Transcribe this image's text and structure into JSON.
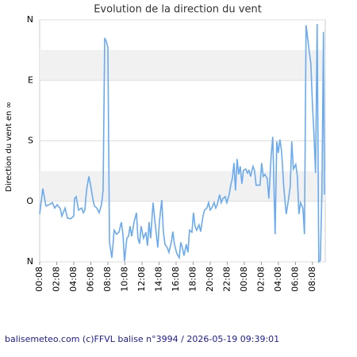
{
  "chart_data": {
    "type": "line",
    "title": "Evolution de la direction du vent",
    "ylabel": "Direction du vent en ∞",
    "footer": "balisemeteo.com (c)FFVL balise n°3994 / 2026-05-19 09:39:01",
    "xlim": [
      0,
      33.5
    ],
    "xticks": [
      {
        "value": 0,
        "label": "00:08"
      },
      {
        "value": 2,
        "label": "02:08"
      },
      {
        "value": 4,
        "label": "04:08"
      },
      {
        "value": 6,
        "label": "06:08"
      },
      {
        "value": 8,
        "label": "08:08"
      },
      {
        "value": 10,
        "label": "10:08"
      },
      {
        "value": 12,
        "label": "12:08"
      },
      {
        "value": 14,
        "label": "14:08"
      },
      {
        "value": 16,
        "label": "16:08"
      },
      {
        "value": 18,
        "label": "18:08"
      },
      {
        "value": 20,
        "label": "20:08"
      },
      {
        "value": 22,
        "label": "22:08"
      },
      {
        "value": 24,
        "label": "00:08"
      },
      {
        "value": 26,
        "label": "02:08"
      },
      {
        "value": 28,
        "label": "04:08"
      },
      {
        "value": 30,
        "label": "06:08"
      },
      {
        "value": 32,
        "label": "08:08"
      }
    ],
    "ylim": [
      360,
      0
    ],
    "yticks": [
      {
        "value": 0,
        "label": "N"
      },
      {
        "value": 90,
        "label": "E"
      },
      {
        "value": 180,
        "label": "S"
      },
      {
        "value": 270,
        "label": "O"
      },
      {
        "value": 360,
        "label": "N"
      }
    ],
    "grid": true,
    "series": [
      {
        "name": "Direction",
        "color": "#6aaaf0",
        "x": [
          0,
          0.37,
          0.74,
          1.12,
          1.49,
          1.77,
          2.05,
          2.42,
          2.6,
          2.98,
          3.26,
          3.63,
          4.0,
          4.09,
          4.28,
          4.56,
          4.93,
          5.12,
          5.3,
          5.49,
          5.77,
          5.95,
          6.23,
          6.42,
          6.7,
          6.98,
          7.25,
          7.44,
          7.63,
          7.81,
          8.0,
          8.19,
          8.47,
          8.74,
          9.02,
          9.3,
          9.58,
          9.77,
          9.95,
          10.23,
          10.42,
          10.6,
          10.79,
          11.07,
          11.35,
          11.53,
          11.72,
          11.9,
          12.18,
          12.46,
          12.65,
          12.83,
          13.02,
          13.3,
          13.58,
          13.86,
          14.04,
          14.32,
          14.51,
          14.7,
          14.97,
          15.16,
          15.44,
          15.62,
          15.81,
          16.09,
          16.37,
          16.55,
          16.74,
          16.93,
          17.2,
          17.39,
          17.58,
          17.86,
          18.04,
          18.23,
          18.41,
          18.69,
          18.88,
          19.16,
          19.34,
          19.62,
          19.81,
          20.0,
          20.18,
          20.46,
          20.65,
          20.83,
          21.11,
          21.3,
          21.48,
          21.76,
          21.95,
          22.23,
          22.41,
          22.6,
          22.79,
          22.97,
          23.16,
          23.34,
          23.53,
          23.72,
          23.9,
          24.18,
          24.37,
          24.55,
          24.74,
          25.02,
          25.2,
          25.39,
          25.67,
          25.85,
          26.04,
          26.23,
          26.41,
          26.69,
          26.88,
          27.16,
          27.34,
          27.62,
          27.81,
          27.99,
          28.18,
          28.37,
          28.64,
          28.92,
          29.2,
          29.39,
          29.57,
          29.76,
          30.04,
          30.23,
          30.41,
          30.6,
          30.88,
          31.06,
          31.25,
          31.43,
          31.62,
          31.81,
          31.99,
          32.18,
          32.36,
          32.55,
          32.74,
          32.92,
          33.11,
          33.29,
          33.39
        ],
        "values": [
          289,
          251,
          277,
          275,
          272,
          280,
          275,
          281,
          292,
          280,
          295,
          296,
          292,
          266,
          263,
          283,
          280,
          287,
          283,
          254,
          233,
          244,
          266,
          277,
          280,
          287,
          275,
          254,
          27,
          32,
          41,
          331,
          354,
          313,
          319,
          316,
          301,
          319,
          359,
          325,
          322,
          307,
          322,
          301,
          287,
          325,
          333,
          307,
          325,
          316,
          336,
          301,
          325,
          272,
          307,
          339,
          301,
          268,
          315,
          334,
          339,
          346,
          331,
          315,
          334,
          348,
          354,
          331,
          339,
          351,
          334,
          346,
          313,
          316,
          287,
          307,
          313,
          305,
          315,
          292,
          283,
          280,
          272,
          283,
          280,
          272,
          280,
          275,
          260,
          272,
          266,
          263,
          272,
          260,
          246,
          236,
          213,
          254,
          207,
          230,
          218,
          244,
          224,
          222,
          228,
          224,
          233,
          218,
          224,
          246,
          246,
          246,
          213,
          233,
          230,
          236,
          266,
          201,
          174,
          319,
          181,
          198,
          178,
          195,
          250,
          289,
          266,
          248,
          181,
          222,
          215,
          233,
          289,
          272,
          280,
          319,
          8,
          27,
          47,
          65,
          124,
          171,
          228,
          6,
          360,
          358,
          254,
          18,
          260
        ]
      }
    ]
  }
}
